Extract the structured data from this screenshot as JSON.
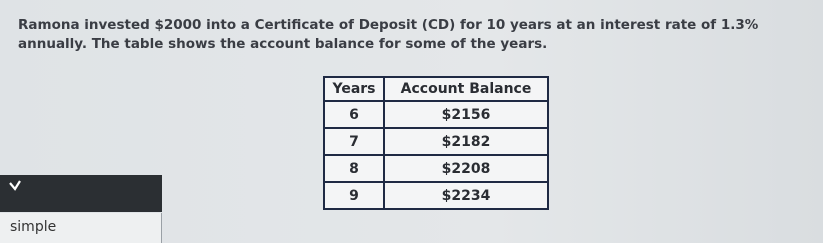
{
  "paragraph": "Ramona invested $2000 into a Certificate of Deposit (CD) for 10 years at an interest rate of 1.3% annually. The table shows the account balance for some of the years.",
  "table": {
    "headers": [
      "Years",
      "Account Balance"
    ],
    "rows": [
      [
        "6",
        "$2156"
      ],
      [
        "7",
        "$2182"
      ],
      [
        "8",
        "$2208"
      ],
      [
        "9",
        "$2234"
      ]
    ]
  },
  "dropdown": {
    "option": "simple"
  }
}
